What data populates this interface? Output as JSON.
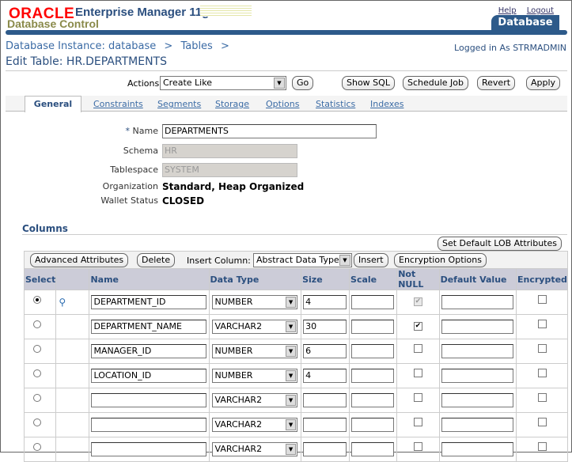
{
  "header": {
    "brand": "ORACLE",
    "product": "Enterprise Manager 11g",
    "subtitle": "Database Control",
    "help": "Help",
    "logout": "Logout",
    "target_tab": "Database"
  },
  "breadcrumb": {
    "items": [
      "Database Instance: database",
      "Tables"
    ],
    "sep": ">"
  },
  "logged_in": "Logged in As STRMADMIN",
  "page_title": "Edit Table: HR.DEPARTMENTS",
  "toolbar": {
    "actions_label": "Actions",
    "actions_value": "Create Like",
    "go": "Go",
    "show_sql": "Show SQL",
    "schedule_job": "Schedule Job",
    "revert": "Revert",
    "apply": "Apply"
  },
  "tabs": [
    "General",
    "Constraints",
    "Segments",
    "Storage",
    "Options",
    "Statistics",
    "Indexes"
  ],
  "form": {
    "name_label": "Name",
    "required_mark": "*",
    "name_value": "DEPARTMENTS",
    "schema_label": "Schema",
    "schema_value": "HR",
    "tablespace_label": "Tablespace",
    "tablespace_value": "SYSTEM",
    "organization_label": "Organization",
    "organization_value": "Standard, Heap Organized",
    "wallet_label": "Wallet Status",
    "wallet_value": "CLOSED"
  },
  "columns": {
    "title": "Columns",
    "set_lob": "Set Default LOB Attributes",
    "advanced": "Advanced Attributes",
    "delete": "Delete",
    "insert_label": "Insert Column:",
    "insert_type": "Abstract Data Type",
    "insert": "Insert",
    "encryption": "Encryption Options",
    "headers": [
      "Select",
      "",
      "Name",
      "Data Type",
      "Size",
      "Scale",
      "Not NULL",
      "Default Value",
      "Encrypted"
    ],
    "rows": [
      {
        "selected": true,
        "key": true,
        "name": "DEPARTMENT_ID",
        "type": "NUMBER",
        "size": "4",
        "scale": "",
        "not_null": true,
        "not_null_disabled": true,
        "default": "",
        "encrypted": false
      },
      {
        "selected": false,
        "key": false,
        "name": "DEPARTMENT_NAME",
        "type": "VARCHAR2",
        "size": "30",
        "scale": "",
        "not_null": true,
        "not_null_disabled": false,
        "default": "",
        "encrypted": false
      },
      {
        "selected": false,
        "key": false,
        "name": "MANAGER_ID",
        "type": "NUMBER",
        "size": "6",
        "scale": "",
        "not_null": false,
        "not_null_disabled": false,
        "default": "",
        "encrypted": false
      },
      {
        "selected": false,
        "key": false,
        "name": "LOCATION_ID",
        "type": "NUMBER",
        "size": "4",
        "scale": "",
        "not_null": false,
        "not_null_disabled": false,
        "default": "",
        "encrypted": false
      },
      {
        "selected": false,
        "key": false,
        "name": "",
        "type": "VARCHAR2",
        "size": "",
        "scale": "",
        "not_null": false,
        "not_null_disabled": false,
        "default": "",
        "encrypted": false
      },
      {
        "selected": false,
        "key": false,
        "name": "",
        "type": "VARCHAR2",
        "size": "",
        "scale": "",
        "not_null": false,
        "not_null_disabled": false,
        "default": "",
        "encrypted": false
      },
      {
        "selected": false,
        "key": false,
        "name": "",
        "type": "VARCHAR2",
        "size": "",
        "scale": "",
        "not_null": false,
        "not_null_disabled": false,
        "default": "",
        "encrypted": false
      }
    ]
  }
}
